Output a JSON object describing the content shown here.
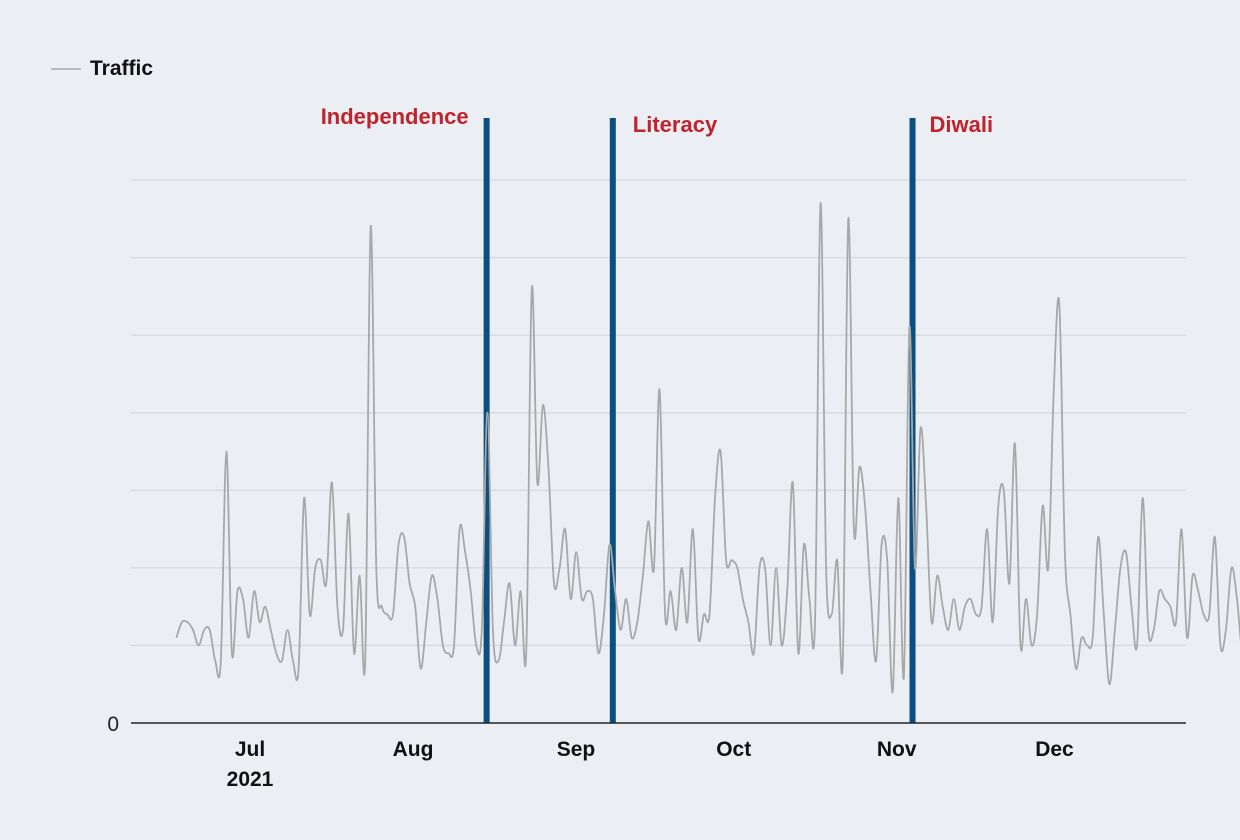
{
  "chart_data": {
    "type": "line",
    "title": "",
    "xlabel": "",
    "ylabel": "",
    "legend": {
      "position": "top-left",
      "entries": [
        {
          "name": "Traffic",
          "color": "#a8a8a8"
        }
      ]
    },
    "grid": {
      "y": true,
      "x": false
    },
    "ylim": [
      0,
      7
    ],
    "y_ticks_labeled": [
      0
    ],
    "x_ticks": [
      {
        "label": "Jul",
        "sublabel": "2021",
        "date": "2021-07-01"
      },
      {
        "label": "Aug",
        "sublabel": "",
        "date": "2021-08-01"
      },
      {
        "label": "Sep",
        "sublabel": "",
        "date": "2021-09-01"
      },
      {
        "label": "Oct",
        "sublabel": "",
        "date": "2021-10-01"
      },
      {
        "label": "Nov",
        "sublabel": "",
        "date": "2021-11-01"
      },
      {
        "label": "Dec",
        "sublabel": "",
        "date": "2021-12-01"
      }
    ],
    "series": [
      {
        "name": "Traffic",
        "color": "#a8a8a8",
        "start_date": "2021-06-17",
        "values": [
          1.1,
          1.3,
          1.3,
          1.2,
          1.0,
          1.2,
          1.2,
          0.8,
          0.8,
          3.5,
          0.9,
          1.7,
          1.6,
          1.1,
          1.7,
          1.3,
          1.5,
          1.2,
          0.9,
          0.8,
          1.2,
          0.8,
          0.7,
          2.9,
          1.4,
          2.0,
          2.1,
          1.8,
          3.1,
          1.5,
          1.2,
          2.7,
          0.9,
          1.9,
          0.8,
          6.4,
          2.0,
          1.5,
          1.4,
          1.4,
          2.3,
          2.4,
          1.8,
          1.5,
          0.7,
          1.3,
          1.9,
          1.6,
          1.0,
          0.9,
          1.0,
          2.5,
          2.2,
          1.7,
          1.0,
          1.2,
          4.0,
          1.2,
          0.8,
          1.3,
          1.8,
          1.0,
          1.7,
          0.9,
          5.6,
          3.1,
          4.1,
          3.3,
          1.8,
          2.0,
          2.5,
          1.6,
          2.2,
          1.6,
          1.7,
          1.6,
          0.9,
          1.4,
          2.3,
          1.7,
          1.2,
          1.6,
          1.1,
          1.3,
          1.9,
          2.6,
          2.0,
          4.3,
          1.4,
          1.7,
          1.2,
          2.0,
          1.3,
          2.5,
          1.1,
          1.4,
          1.4,
          2.9,
          3.5,
          2.1,
          2.1,
          2.0,
          1.6,
          1.3,
          0.9,
          2.0,
          2.0,
          1.0,
          2.0,
          1.0,
          1.7,
          3.1,
          0.9,
          2.3,
          1.6,
          1.3,
          6.7,
          2.0,
          1.4,
          2.1,
          0.8,
          6.5,
          2.5,
          3.3,
          2.8,
          1.7,
          0.8,
          2.3,
          2.1,
          0.4,
          2.9,
          0.6,
          5.1,
          2.0,
          3.8,
          2.8,
          1.3,
          1.9,
          1.5,
          1.2,
          1.6,
          1.2,
          1.5,
          1.6,
          1.4,
          1.5,
          2.5,
          1.3,
          2.8,
          3.0,
          1.8,
          3.6,
          1.0,
          1.6,
          1.0,
          1.4,
          2.8,
          2.0,
          4.3,
          5.4,
          2.2,
          1.4,
          0.7,
          1.1,
          1.0,
          1.1,
          2.4,
          1.4,
          0.5,
          1.2,
          2.0,
          2.2,
          1.5,
          1.0,
          2.9,
          1.2,
          1.2,
          1.7,
          1.6,
          1.5,
          1.3,
          2.5,
          1.1,
          1.9,
          1.7,
          1.4,
          1.4,
          2.4,
          1.0,
          1.2,
          2.0,
          1.6,
          0.9,
          1.4,
          1.6,
          1.0,
          0.0
        ]
      }
    ],
    "annotations": [
      {
        "label": "Independence",
        "date": "2021-08-15",
        "color": "#0b4f7f",
        "text_color": "#c0232c"
      },
      {
        "label": "Literacy",
        "date": "2021-09-08",
        "color": "#0b4f7f",
        "text_color": "#c0232c"
      },
      {
        "label": "Diwali",
        "date": "2021-11-04",
        "color": "#0b4f7f",
        "text_color": "#c0232c"
      }
    ]
  }
}
